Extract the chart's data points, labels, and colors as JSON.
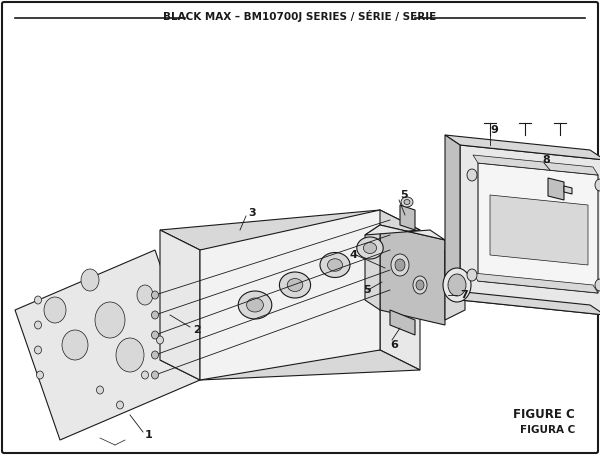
{
  "title": "BLACK MAX – BM10700J SERIES / SÉRIE / SERIE",
  "figure_label": "FIGURE C",
  "figura_label": "FIGURA C",
  "bg_color": "#ffffff",
  "line_color": "#1a1a1a",
  "gray_light": "#d8d8d8",
  "gray_mid": "#c0c0c0",
  "gray_dark": "#a0a0a0",
  "gray_fill": "#e8e8e8"
}
